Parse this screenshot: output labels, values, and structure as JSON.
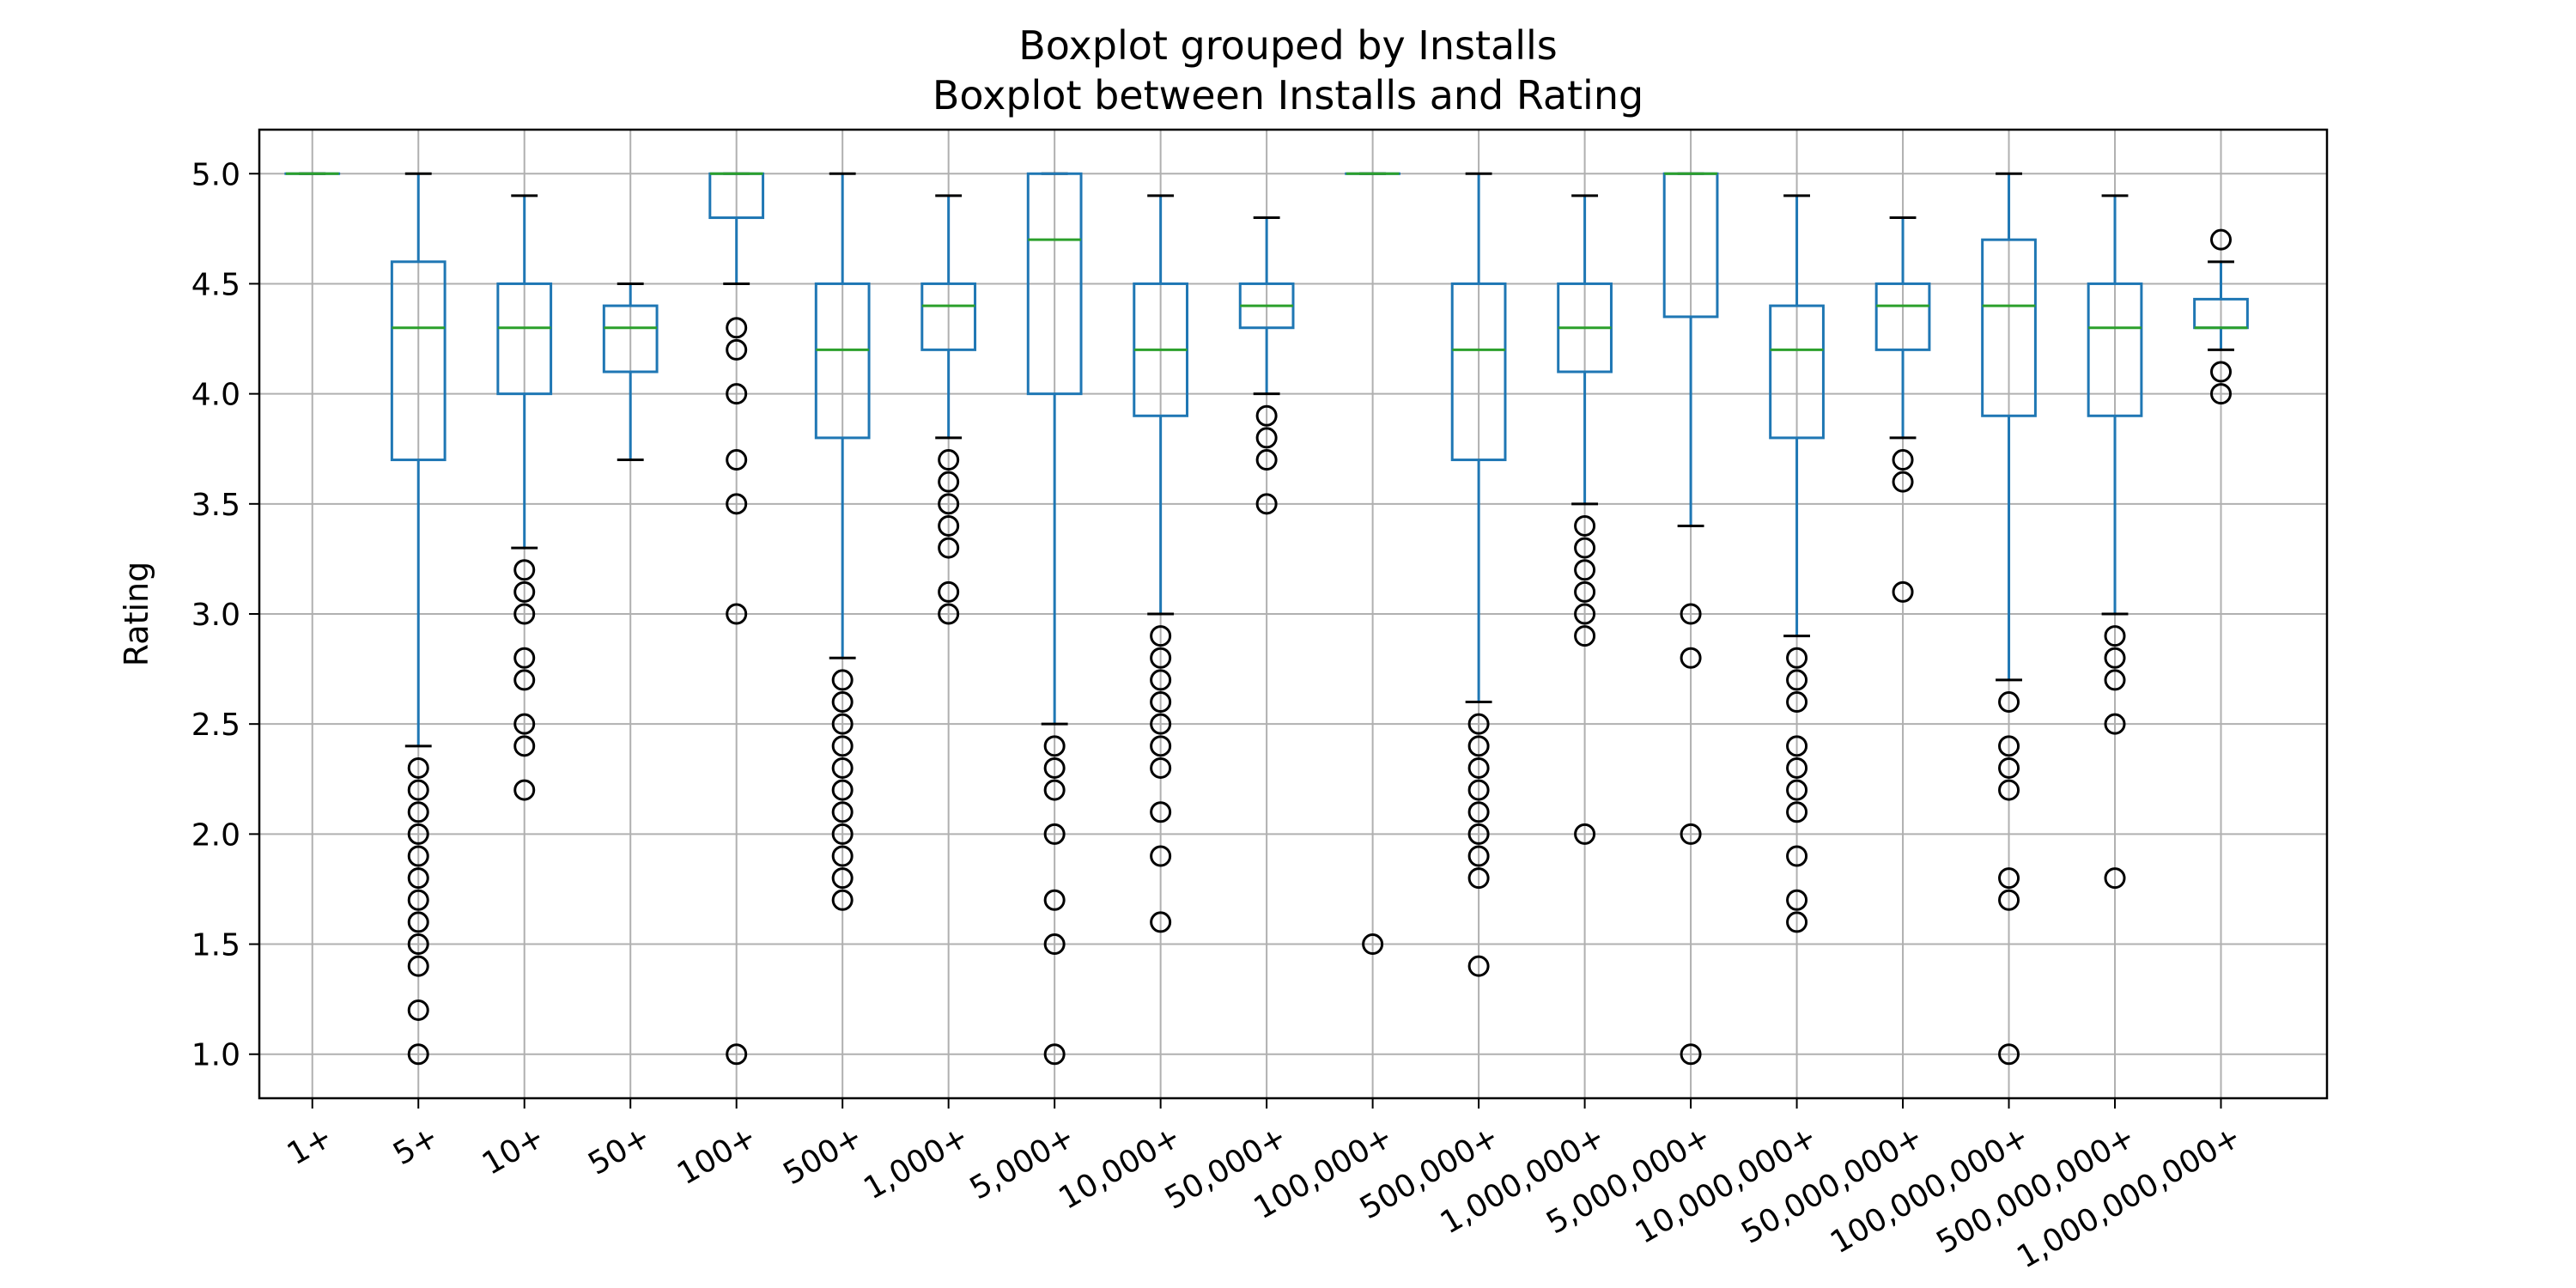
{
  "chart_data": {
    "type": "boxplot",
    "title": "Boxplot grouped by Installs",
    "subtitle": "Boxplot between Installs and Rating",
    "xlabel": "",
    "ylabel": "Rating",
    "ylim": [
      0.8,
      5.2
    ],
    "yticks": [
      "1.0",
      "1.5",
      "2.0",
      "2.5",
      "3.0",
      "3.5",
      "4.0",
      "4.5",
      "5.0"
    ],
    "grid": true,
    "colors": {
      "box": "#1f77b4",
      "median": "#2ca02c",
      "outlier": "#000000",
      "grid": "#b0b0b0"
    },
    "categories": [
      "1+",
      "5+",
      "10+",
      "50+",
      "100+",
      "500+",
      "1,000+",
      "5,000+",
      "10,000+",
      "50,000+",
      "100,000+",
      "500,000+",
      "1,000,000+",
      "5,000,000+",
      "10,000,000+",
      "50,000,000+",
      "100,000,000+",
      "500,000,000+",
      "1,000,000,000+"
    ],
    "boxes": [
      {
        "whislo": 5.0,
        "q1": 5.0,
        "med": 5.0,
        "q3": 5.0,
        "whishi": 5.0,
        "outliers": []
      },
      {
        "whislo": 2.4,
        "q1": 3.7,
        "med": 4.3,
        "q3": 4.6,
        "whishi": 5.0,
        "outliers": [
          2.3,
          2.2,
          2.1,
          2.0,
          1.9,
          1.8,
          1.7,
          1.6,
          1.5,
          1.4,
          1.2,
          1.0
        ]
      },
      {
        "whislo": 3.3,
        "q1": 4.0,
        "med": 4.3,
        "q3": 4.5,
        "whishi": 4.9,
        "outliers": [
          3.2,
          3.1,
          3.0,
          2.8,
          2.7,
          2.5,
          2.4,
          2.2
        ]
      },
      {
        "whislo": 3.7,
        "q1": 4.1,
        "med": 4.3,
        "q3": 4.4,
        "whishi": 4.5,
        "outliers": []
      },
      {
        "whislo": 4.5,
        "q1": 4.8,
        "med": 5.0,
        "q3": 5.0,
        "whishi": 5.0,
        "outliers": [
          4.3,
          4.2,
          4.0,
          3.7,
          3.5,
          3.0,
          1.0
        ]
      },
      {
        "whislo": 2.8,
        "q1": 3.8,
        "med": 4.2,
        "q3": 4.5,
        "whishi": 5.0,
        "outliers": [
          2.7,
          2.6,
          2.5,
          2.4,
          2.3,
          2.2,
          2.1,
          2.0,
          1.9,
          1.8,
          1.7
        ]
      },
      {
        "whislo": 3.8,
        "q1": 4.2,
        "med": 4.4,
        "q3": 4.5,
        "whishi": 4.9,
        "outliers": [
          3.7,
          3.6,
          3.5,
          3.4,
          3.3,
          3.1,
          3.0
        ]
      },
      {
        "whislo": 2.5,
        "q1": 4.0,
        "med": 4.7,
        "q3": 5.0,
        "whishi": 5.0,
        "outliers": [
          2.4,
          2.3,
          2.2,
          2.0,
          1.7,
          1.5,
          1.0
        ]
      },
      {
        "whislo": 3.0,
        "q1": 3.9,
        "med": 4.2,
        "q3": 4.5,
        "whishi": 4.9,
        "outliers": [
          2.9,
          2.8,
          2.7,
          2.6,
          2.5,
          2.4,
          2.3,
          2.1,
          1.9,
          1.6
        ]
      },
      {
        "whislo": 4.0,
        "q1": 4.3,
        "med": 4.4,
        "q3": 4.5,
        "whishi": 4.8,
        "outliers": [
          3.9,
          3.8,
          3.7,
          3.5
        ]
      },
      {
        "whislo": 5.0,
        "q1": 5.0,
        "med": 5.0,
        "q3": 5.0,
        "whishi": 5.0,
        "outliers": [
          1.5
        ]
      },
      {
        "whislo": 2.6,
        "q1": 3.7,
        "med": 4.2,
        "q3": 4.5,
        "whishi": 5.0,
        "outliers": [
          2.5,
          2.4,
          2.3,
          2.2,
          2.1,
          2.0,
          1.9,
          1.8,
          1.4
        ]
      },
      {
        "whislo": 3.5,
        "q1": 4.1,
        "med": 4.3,
        "q3": 4.5,
        "whishi": 4.9,
        "outliers": [
          3.4,
          3.3,
          3.2,
          3.1,
          3.0,
          2.9,
          2.0
        ]
      },
      {
        "whislo": 3.4,
        "q1": 4.35,
        "med": 5.0,
        "q3": 5.0,
        "whishi": 5.0,
        "outliers": [
          3.0,
          2.8,
          2.0,
          1.0
        ]
      },
      {
        "whislo": 2.9,
        "q1": 3.8,
        "med": 4.2,
        "q3": 4.4,
        "whishi": 4.9,
        "outliers": [
          2.8,
          2.7,
          2.6,
          2.4,
          2.3,
          2.2,
          2.1,
          1.9,
          1.7,
          1.6
        ]
      },
      {
        "whislo": 3.8,
        "q1": 4.2,
        "med": 4.4,
        "q3": 4.5,
        "whishi": 4.8,
        "outliers": [
          3.7,
          3.6,
          3.1
        ]
      },
      {
        "whislo": 2.7,
        "q1": 3.9,
        "med": 4.4,
        "q3": 4.7,
        "whishi": 5.0,
        "outliers": [
          2.6,
          2.4,
          2.3,
          2.2,
          1.8,
          1.7,
          1.0
        ]
      },
      {
        "whislo": 3.0,
        "q1": 3.9,
        "med": 4.3,
        "q3": 4.5,
        "whishi": 4.9,
        "outliers": [
          2.9,
          2.8,
          2.7,
          2.5,
          1.8
        ]
      },
      {
        "whislo": 4.2,
        "q1": 4.3,
        "med": 4.3,
        "q3": 4.43,
        "whishi": 4.6,
        "outliers": [
          4.7,
          4.1,
          4.0
        ]
      }
    ]
  }
}
